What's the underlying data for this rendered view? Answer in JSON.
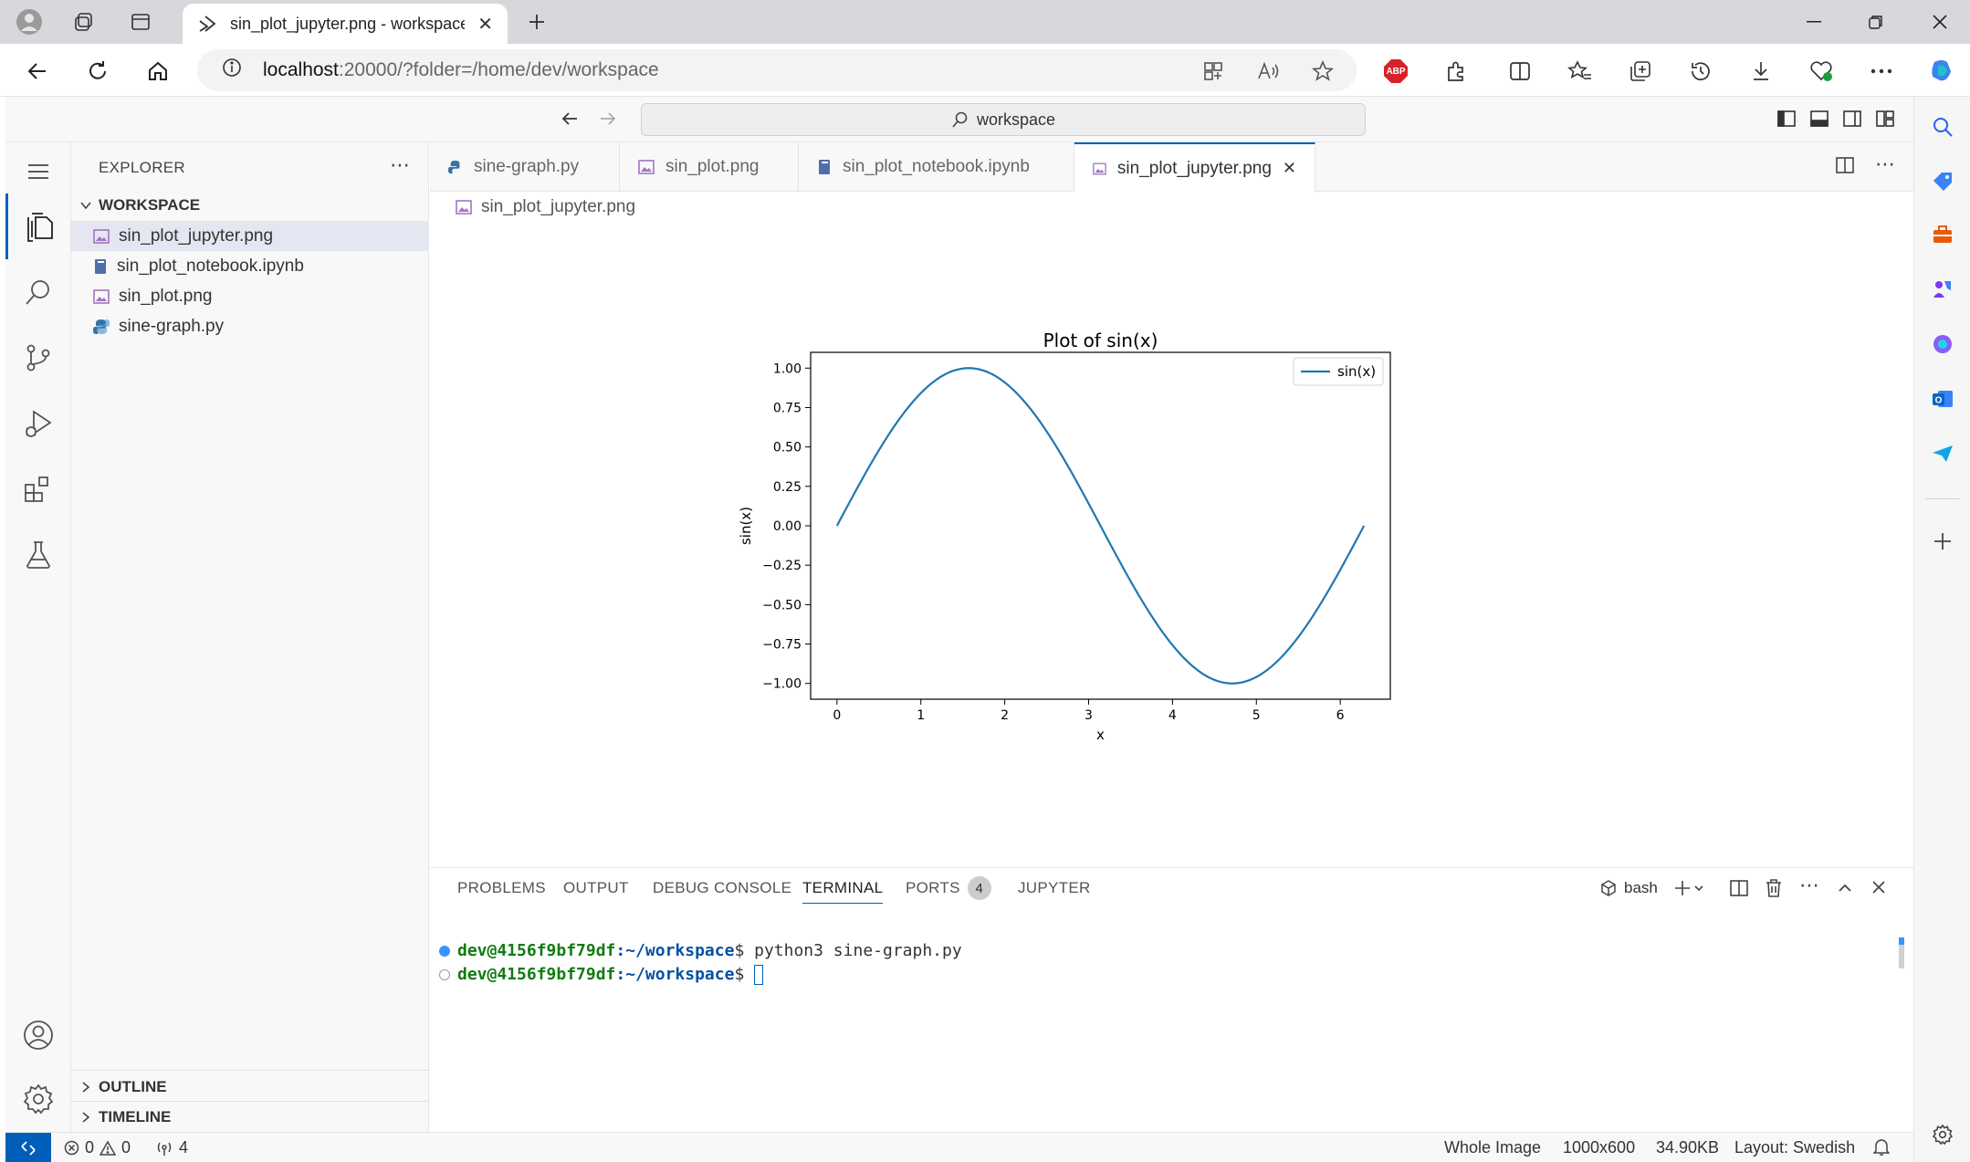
{
  "browser": {
    "tab_title": "sin_plot_jupyter.png - workspace",
    "url_host": "localhost",
    "url_rest": ":20000/?folder=/home/dev/workspace",
    "abp_label": "ABP"
  },
  "vscode": {
    "command_center": "workspace",
    "explorer_title": "EXPLORER",
    "workspace_section": "WORKSPACE",
    "files": [
      {
        "name": "sin_plot_jupyter.png"
      },
      {
        "name": "sin_plot_notebook.ipynb"
      },
      {
        "name": "sin_plot.png"
      },
      {
        "name": "sine-graph.py"
      }
    ],
    "outline": "OUTLINE",
    "timeline": "TIMELINE",
    "tabs": [
      {
        "label": "sine-graph.py"
      },
      {
        "label": "sin_plot.png"
      },
      {
        "label": "sin_plot_notebook.ipynb"
      },
      {
        "label": "sin_plot_jupyter.png"
      }
    ],
    "breadcrumb": "sin_plot_jupyter.png"
  },
  "panel": {
    "tabs": [
      "PROBLEMS",
      "OUTPUT",
      "DEBUG CONSOLE",
      "TERMINAL",
      "PORTS",
      "JUPYTER"
    ],
    "ports_count": "4",
    "shell": "bash",
    "lines": [
      {
        "user": "dev@4156f9bf79df",
        "path": ":~/workspace",
        "cmd": "$ python3 sine-graph.py"
      },
      {
        "user": "dev@4156f9bf79df",
        "path": ":~/workspace",
        "cmd": "$ "
      }
    ]
  },
  "status": {
    "errors": "0",
    "warnings": "0",
    "ports": "4",
    "view": "Whole Image",
    "dimensions": "1000x600",
    "size": "34.90KB",
    "layout": "Layout: Swedish"
  },
  "chart_data": {
    "type": "line",
    "title": "Plot of sin(x)",
    "xlabel": "x",
    "ylabel": "sin(x)",
    "xlim": [
      -0.314,
      6.597
    ],
    "ylim": [
      -1.1,
      1.1
    ],
    "xticks": [
      "0",
      "1",
      "2",
      "3",
      "4",
      "5",
      "6"
    ],
    "yticks": [
      "1.00",
      "0.75",
      "0.50",
      "0.25",
      "0.00",
      "−0.25",
      "−0.50",
      "−0.75",
      "−1.00"
    ],
    "legend": "top-right",
    "grid": false,
    "color": "#1f77b4",
    "series": [
      {
        "name": "sin(x)",
        "function": "sin",
        "x_range": [
          0,
          6.283
        ]
      }
    ]
  }
}
